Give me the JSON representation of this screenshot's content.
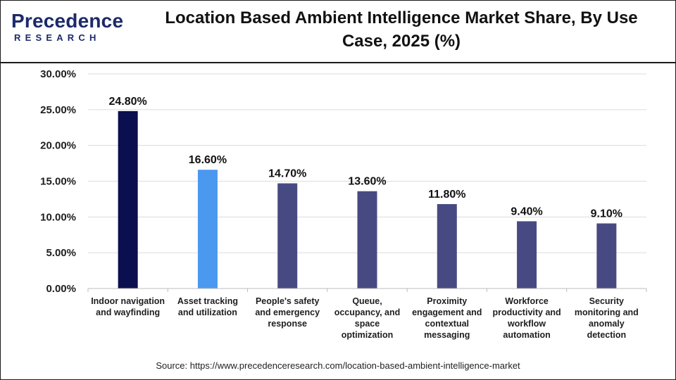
{
  "logo": {
    "word": "Precedence",
    "sub": "RESEARCH"
  },
  "chart_data": {
    "type": "bar",
    "title": "Location Based Ambient Intelligence Market Share, By Use Case, 2025 (%)",
    "categories": [
      [
        "Indoor navigation",
        "and wayfinding"
      ],
      [
        "Asset tracking",
        "and utilization"
      ],
      [
        "People's safety",
        "and emergency",
        "response"
      ],
      [
        "Queue,",
        "occupancy, and",
        "space",
        "optimization"
      ],
      [
        "Proximity",
        "engagement and",
        "contextual",
        "messaging"
      ],
      [
        "Workforce",
        "productivity and",
        "workflow",
        "automation"
      ],
      [
        "Security",
        "monitoring and",
        "anomaly",
        "detection"
      ]
    ],
    "values": [
      24.8,
      16.6,
      14.7,
      13.6,
      11.8,
      9.4,
      9.1
    ],
    "value_labels": [
      "24.80%",
      "16.60%",
      "14.70%",
      "13.60%",
      "11.80%",
      "9.40%",
      "9.10%"
    ],
    "bar_colors": [
      "#0b0e4f",
      "#4a98f0",
      "#474a82",
      "#474a82",
      "#474a82",
      "#474a82",
      "#474a82"
    ],
    "ylim": [
      0,
      30
    ],
    "yticks": [
      0,
      5,
      10,
      15,
      20,
      25,
      30
    ],
    "ytick_labels": [
      "0.00%",
      "5.00%",
      "10.00%",
      "15.00%",
      "20.00%",
      "25.00%",
      "30.00%"
    ],
    "grid": true,
    "xlabel": "",
    "ylabel": ""
  },
  "source": "Source: https://www.precedenceresearch.com/location-based-ambient-intelligence-market"
}
